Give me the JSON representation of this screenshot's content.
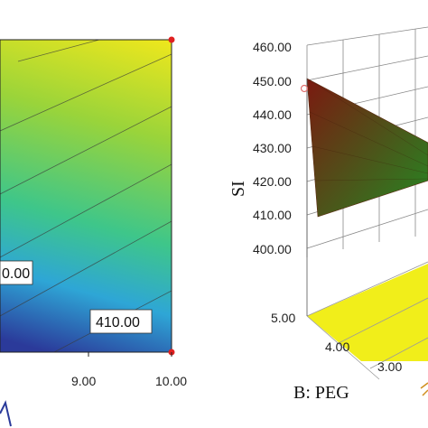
{
  "chart_data": [
    {
      "type": "heatmap",
      "description_role": "contour",
      "x": {
        "ticks": [
          "9.00",
          "10.00"
        ],
        "range": [
          8.0,
          10.0
        ]
      },
      "contour_labels": [
        "410.00",
        "0.00"
      ],
      "design_points_marked": true,
      "colormap": [
        "#2b3a9a",
        "#2ea6d6",
        "#3ec68a",
        "#9ad43a",
        "#f2e81b"
      ]
    },
    {
      "type": "surface",
      "zlabel": "SI",
      "zlim": [
        400,
        460
      ],
      "z_ticks": [
        "460.00",
        "450.00",
        "440.00",
        "430.00",
        "420.00",
        "410.00",
        "400.00"
      ],
      "ylabel": "B: PEG",
      "y_ticks": [
        "5.00",
        "4.00",
        "3.00"
      ],
      "colors": {
        "surface_high": "#7a1a10",
        "surface_low": "#2f7a20",
        "floor": "#f1ee1a"
      }
    }
  ]
}
